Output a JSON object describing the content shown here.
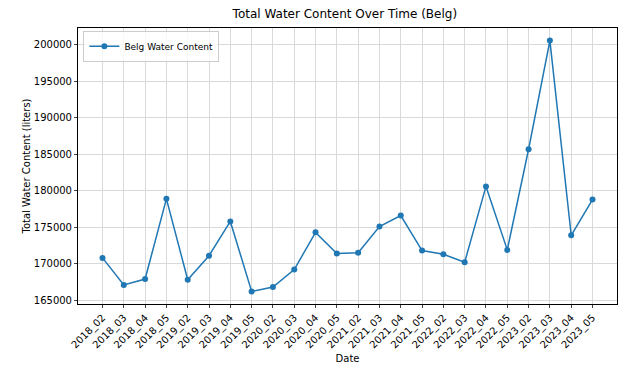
{
  "chart_data": {
    "type": "line",
    "title": "Total Water Content Over Time (Belg)",
    "x_label": "Date",
    "y_label": "Total Water Content (liters)",
    "categories": [
      "2018_02",
      "2018_03",
      "2018_04",
      "2018_05",
      "2019_02",
      "2019_03",
      "2019_04",
      "2019_05",
      "2020_02",
      "2020_03",
      "2020_04",
      "2020_05",
      "2021_02",
      "2021_03",
      "2021_04",
      "2021_05",
      "2022_02",
      "2022_03",
      "2022_04",
      "2022_05",
      "2023_02",
      "2023_03",
      "2023_04",
      "2023_05"
    ],
    "series": [
      {
        "name": "Belg Water Content",
        "color": "#1f77b4",
        "marker": "circle",
        "line_style": "solid",
        "values": [
          170800,
          167100,
          167900,
          178900,
          167800,
          171100,
          175800,
          166200,
          166800,
          169200,
          174300,
          171400,
          171500,
          175100,
          176600,
          171800,
          171300,
          170200,
          180600,
          171900,
          185700,
          200600,
          173900,
          178800
        ]
      }
    ],
    "ylim": [
      164480,
      202320
    ],
    "yticks": [
      165000,
      170000,
      175000,
      180000,
      185000,
      190000,
      195000,
      200000
    ],
    "grid": true,
    "legend": "upper left"
  }
}
